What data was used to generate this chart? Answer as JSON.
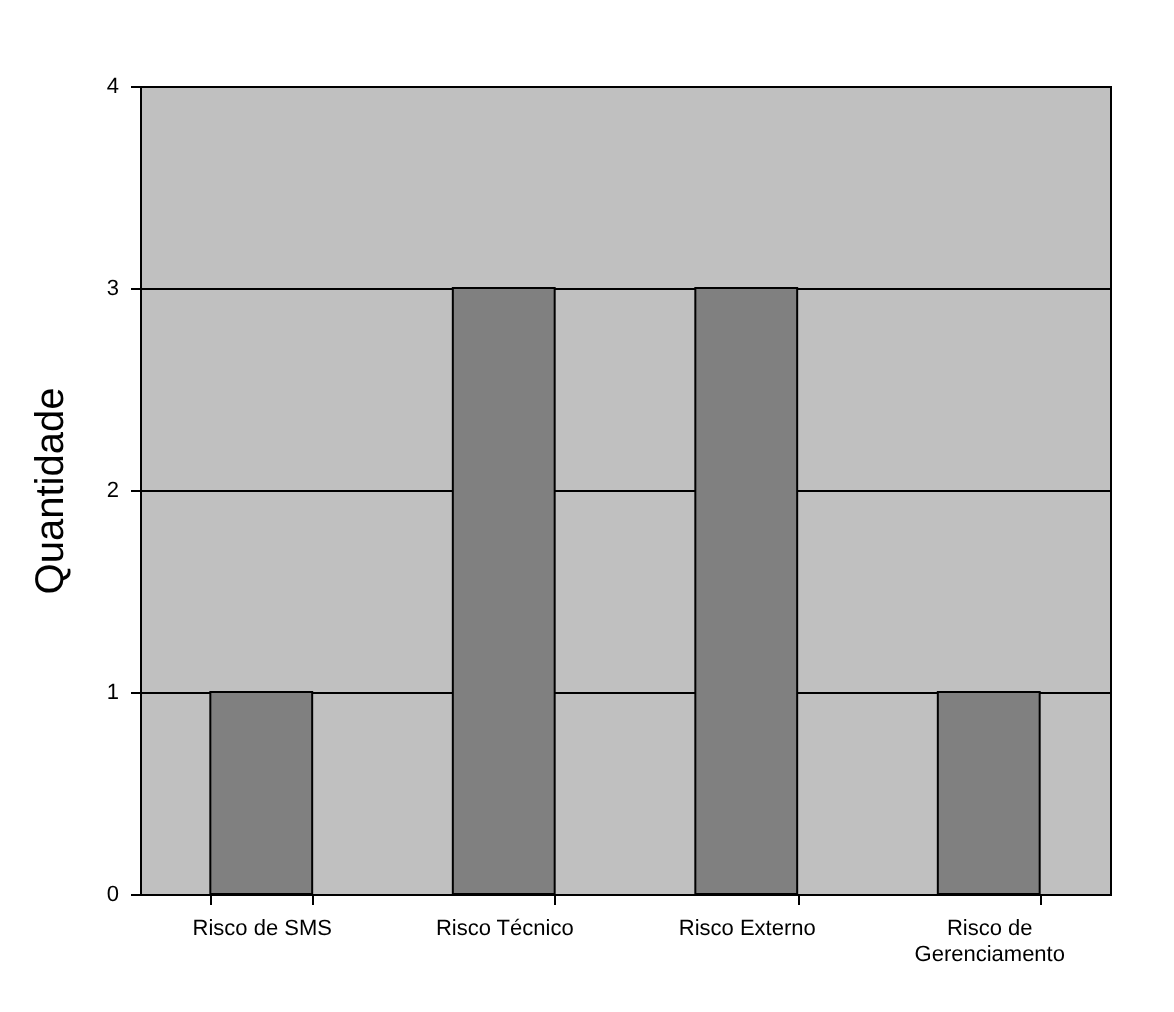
{
  "chart_data": {
    "type": "bar",
    "ylabel": "Quantidade",
    "categories": [
      "Risco de SMS",
      "Risco Técnico",
      "Risco Externo",
      "Risco de Gerenciamento"
    ],
    "values": [
      1,
      3,
      3,
      1
    ],
    "color": "#808080",
    "ylim": [
      0,
      4
    ],
    "yticks": [
      0,
      1,
      2,
      3,
      4
    ],
    "grid": "y"
  }
}
